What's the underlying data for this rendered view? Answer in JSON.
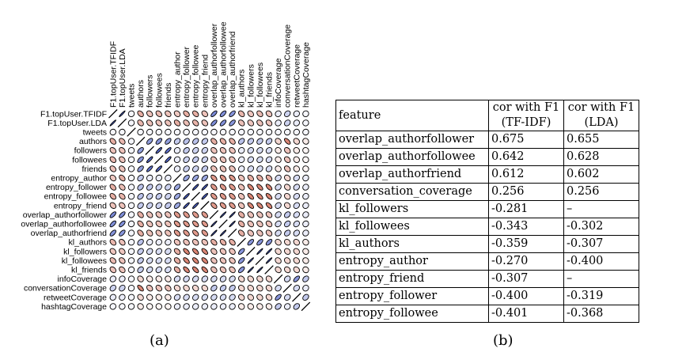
{
  "chart_data": [
    {
      "type": "heatmap",
      "style": "correlation-ellipses",
      "colors": {
        "positive": "#4a5fc7",
        "negative": "#c7472e",
        "neutral": "#ffffff",
        "outline": "#000000"
      },
      "variables": [
        "F1.topUser.TFIDF",
        "F1.topUser.LDA",
        "tweets",
        "authors",
        "followers",
        "followees",
        "friends",
        "entropy_author",
        "entropy_follower",
        "entropy_followee",
        "entropy_friend",
        "overlap_authorfollower",
        "overlap_authorfollowee",
        "overlap_authorfriend",
        "kl_authors",
        "kl_followers",
        "kl_followees",
        "kl_friends",
        "infoCoverage",
        "conversationCoverage",
        "retweetCoverage",
        "hashtagCoverage"
      ],
      "matrix": [
        [
          1,
          0.95,
          0.05,
          -0.4,
          -0.3,
          -0.35,
          -0.3,
          -0.27,
          -0.4,
          -0.4,
          -0.3,
          0.675,
          0.642,
          0.612,
          -0.36,
          -0.28,
          -0.34,
          -0.3,
          0.1,
          0.256,
          0.1,
          0.05
        ],
        [
          0.95,
          1,
          0.05,
          -0.35,
          -0.3,
          -0.3,
          -0.3,
          -0.4,
          -0.32,
          -0.37,
          -0.3,
          0.655,
          0.628,
          0.602,
          -0.31,
          -0.28,
          -0.3,
          -0.3,
          0.1,
          0.256,
          0.1,
          0.05
        ],
        [
          0.05,
          0.05,
          1,
          0.05,
          0.05,
          0.05,
          0.05,
          0.05,
          0.05,
          0.05,
          0.05,
          0.05,
          0.05,
          0.05,
          0.05,
          0.05,
          0.05,
          0.05,
          0.05,
          0.05,
          0.05,
          0.05
        ],
        [
          -0.4,
          -0.35,
          0.05,
          1,
          0.55,
          0.6,
          0.55,
          0.3,
          0.35,
          0.35,
          0.3,
          -0.4,
          -0.4,
          -0.4,
          0.35,
          0.3,
          0.3,
          0.3,
          -0.2,
          -0.6,
          -0.2,
          -0.1
        ],
        [
          -0.3,
          -0.3,
          0.05,
          0.55,
          1,
          0.85,
          0.8,
          0.1,
          0.3,
          0.25,
          0.25,
          -0.3,
          -0.3,
          -0.3,
          0.1,
          0.2,
          0.2,
          0.2,
          -0.1,
          -0.3,
          -0.1,
          -0.05
        ],
        [
          -0.35,
          -0.3,
          0.05,
          0.6,
          0.85,
          1,
          0.85,
          0.1,
          0.25,
          0.3,
          0.25,
          -0.3,
          -0.3,
          -0.3,
          0.1,
          0.2,
          0.2,
          0.2,
          -0.1,
          -0.3,
          -0.1,
          -0.05
        ],
        [
          -0.3,
          -0.3,
          0.05,
          0.55,
          0.8,
          0.85,
          1,
          0.1,
          0.25,
          0.25,
          0.3,
          -0.3,
          -0.3,
          -0.3,
          0.1,
          0.2,
          0.2,
          0.2,
          -0.1,
          -0.3,
          -0.1,
          -0.05
        ],
        [
          -0.27,
          -0.4,
          0.05,
          0.3,
          0.1,
          0.1,
          0.1,
          1,
          0.5,
          0.5,
          0.5,
          -0.5,
          -0.5,
          -0.5,
          -0.3,
          -0.4,
          -0.4,
          -0.4,
          0.2,
          -0.2,
          0.2,
          0.1
        ],
        [
          -0.4,
          -0.32,
          0.05,
          0.35,
          0.3,
          0.25,
          0.25,
          0.5,
          1,
          0.9,
          0.9,
          -0.5,
          -0.5,
          -0.5,
          -0.3,
          -0.6,
          -0.6,
          -0.6,
          0.2,
          -0.2,
          0.2,
          0.1
        ],
        [
          -0.4,
          -0.37,
          0.05,
          0.35,
          0.25,
          0.3,
          0.25,
          0.5,
          0.9,
          1,
          0.9,
          -0.5,
          -0.5,
          -0.5,
          -0.3,
          -0.6,
          -0.6,
          -0.6,
          0.2,
          -0.2,
          0.2,
          0.1
        ],
        [
          -0.3,
          -0.3,
          0.05,
          0.3,
          0.25,
          0.25,
          0.3,
          0.5,
          0.9,
          0.9,
          1,
          -0.5,
          -0.5,
          -0.5,
          -0.3,
          -0.6,
          -0.6,
          -0.6,
          0.2,
          -0.2,
          0.2,
          0.1
        ],
        [
          0.675,
          0.655,
          0.05,
          -0.4,
          -0.3,
          -0.3,
          -0.3,
          -0.5,
          -0.5,
          -0.5,
          -0.5,
          1,
          0.95,
          0.95,
          -0.4,
          -0.3,
          -0.3,
          -0.3,
          0.2,
          0.3,
          0.2,
          0.1
        ],
        [
          0.642,
          0.628,
          0.05,
          -0.4,
          -0.3,
          -0.3,
          -0.3,
          -0.5,
          -0.5,
          -0.5,
          -0.5,
          0.95,
          1,
          0.95,
          -0.4,
          -0.3,
          -0.3,
          -0.3,
          0.2,
          0.3,
          0.2,
          0.1
        ],
        [
          0.612,
          0.602,
          0.05,
          -0.4,
          -0.3,
          -0.3,
          -0.3,
          -0.5,
          -0.5,
          -0.5,
          -0.5,
          0.95,
          0.95,
          1,
          -0.4,
          -0.3,
          -0.3,
          -0.3,
          0.2,
          0.3,
          0.2,
          0.1
        ],
        [
          -0.36,
          -0.31,
          0.05,
          0.35,
          0.1,
          0.1,
          0.1,
          -0.3,
          -0.3,
          -0.3,
          -0.3,
          -0.4,
          -0.4,
          -0.4,
          1,
          0.6,
          0.6,
          0.6,
          -0.2,
          -0.2,
          -0.2,
          -0.1
        ],
        [
          -0.28,
          -0.28,
          0.05,
          0.3,
          0.2,
          0.2,
          0.2,
          -0.4,
          -0.6,
          -0.6,
          -0.6,
          -0.3,
          -0.3,
          -0.3,
          0.6,
          1,
          0.95,
          0.95,
          -0.2,
          -0.2,
          -0.2,
          -0.1
        ],
        [
          -0.34,
          -0.3,
          0.05,
          0.3,
          0.2,
          0.2,
          0.2,
          -0.4,
          -0.6,
          -0.6,
          -0.6,
          -0.3,
          -0.3,
          -0.3,
          0.6,
          0.95,
          1,
          0.95,
          -0.2,
          -0.2,
          -0.2,
          -0.1
        ],
        [
          -0.3,
          -0.3,
          0.05,
          0.3,
          0.2,
          0.2,
          0.2,
          -0.4,
          -0.6,
          -0.6,
          -0.6,
          -0.3,
          -0.3,
          -0.3,
          0.6,
          0.95,
          0.95,
          1,
          -0.2,
          -0.2,
          -0.2,
          -0.1
        ],
        [
          0.1,
          0.1,
          0.05,
          -0.2,
          -0.1,
          -0.1,
          -0.1,
          0.2,
          0.2,
          0.2,
          0.2,
          0.2,
          0.2,
          0.2,
          -0.2,
          -0.2,
          -0.2,
          -0.2,
          1,
          0.2,
          0.6,
          0.3
        ],
        [
          0.256,
          0.256,
          0.05,
          -0.6,
          -0.3,
          -0.3,
          -0.3,
          -0.2,
          -0.2,
          -0.2,
          -0.2,
          0.3,
          0.3,
          0.3,
          -0.2,
          -0.2,
          -0.2,
          -0.2,
          0.2,
          1,
          0.2,
          0.1
        ],
        [
          0.1,
          0.1,
          0.05,
          -0.2,
          -0.1,
          -0.1,
          -0.1,
          0.2,
          0.2,
          0.2,
          0.2,
          0.2,
          0.2,
          0.2,
          -0.2,
          -0.2,
          -0.2,
          -0.2,
          0.6,
          0.2,
          1,
          0.3
        ],
        [
          0.05,
          0.05,
          0.05,
          -0.1,
          -0.05,
          -0.05,
          -0.05,
          0.1,
          0.1,
          0.1,
          0.1,
          0.1,
          0.1,
          0.1,
          -0.1,
          -0.1,
          -0.1,
          -0.1,
          0.3,
          0.1,
          0.3,
          1
        ]
      ]
    },
    {
      "type": "table",
      "columns": [
        "feature",
        "cor with F1 (TF-IDF)",
        "cor with F1 (LDA)"
      ],
      "rows": [
        [
          "overlap_authorfollower",
          "0.675",
          "0.655"
        ],
        [
          "overlap_authorfollowee",
          "0.642",
          "0.628"
        ],
        [
          "overlap_authorfriend",
          "0.612",
          "0.602"
        ],
        [
          "conversation_coverage",
          "0.256",
          "0.256"
        ],
        [
          "kl_followers",
          "-0.281",
          "–"
        ],
        [
          "kl_followees",
          "-0.343",
          "-0.302"
        ],
        [
          "kl_authors",
          "-0.359",
          "-0.307"
        ],
        [
          "entropy_author",
          "-0.270",
          "-0.400"
        ],
        [
          "entropy_friend",
          "-0.307",
          "–"
        ],
        [
          "entropy_follower",
          "-0.400",
          "-0.319"
        ],
        [
          "entropy_followee",
          "-0.401",
          "-0.368"
        ]
      ]
    }
  ],
  "table": {
    "header": {
      "feature": "feature",
      "tfidf_line1": "cor with F1",
      "tfidf_line2": "(TF-IDF)",
      "lda_line1": "cor with F1",
      "lda_line2": "(LDA)"
    },
    "rows": [
      {
        "feature": "overlap_authorfollower",
        "tfidf": "0.675",
        "lda": "0.655"
      },
      {
        "feature": "overlap_authorfollowee",
        "tfidf": "0.642",
        "lda": "0.628"
      },
      {
        "feature": "overlap_authorfriend",
        "tfidf": "0.612",
        "lda": "0.602"
      },
      {
        "feature": "conversation_coverage",
        "tfidf": "0.256",
        "lda": "0.256"
      },
      {
        "feature": "kl_followers",
        "tfidf": "-0.281",
        "lda": "–"
      },
      {
        "feature": "kl_followees",
        "tfidf": "-0.343",
        "lda": "-0.302"
      },
      {
        "feature": "kl_authors",
        "tfidf": "-0.359",
        "lda": "-0.307"
      },
      {
        "feature": "entropy_author",
        "tfidf": "-0.270",
        "lda": "-0.400"
      },
      {
        "feature": "entropy_friend",
        "tfidf": "-0.307",
        "lda": "–"
      },
      {
        "feature": "entropy_follower",
        "tfidf": "-0.400",
        "lda": "-0.319"
      },
      {
        "feature": "entropy_followee",
        "tfidf": "-0.401",
        "lda": "-0.368"
      }
    ]
  },
  "captions": {
    "a": "(a)",
    "b": "(b)"
  }
}
